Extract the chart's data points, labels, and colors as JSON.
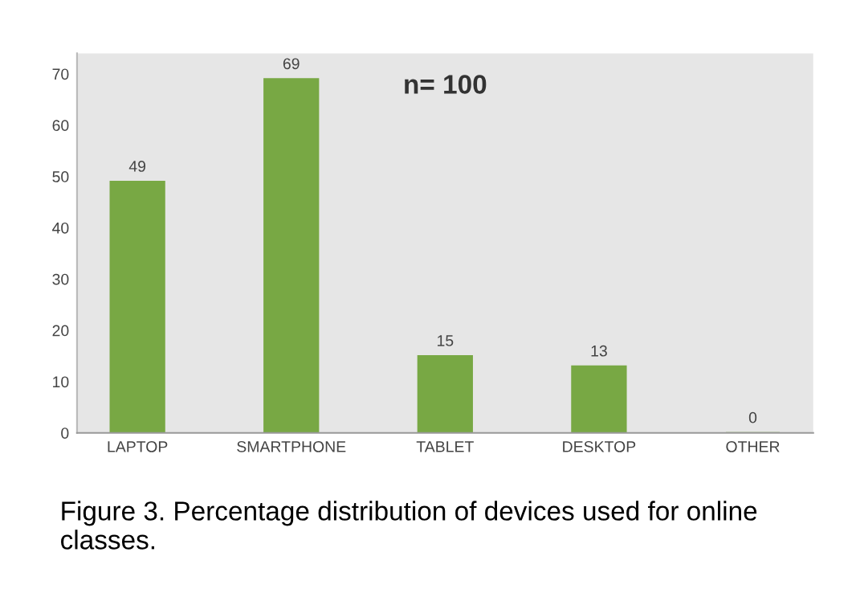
{
  "chart_data": {
    "type": "bar",
    "title": "n= 100",
    "categories": [
      "LAPTOP",
      "SMARTPHONE",
      "TABLET",
      "DESKTOP",
      "OTHER"
    ],
    "values": [
      49,
      69,
      15,
      13,
      0
    ],
    "color": "#78a844",
    "ylim": [
      0,
      74
    ],
    "yticks": [
      0,
      10,
      20,
      30,
      40,
      50,
      60,
      70
    ],
    "grid": false,
    "data_labels": true,
    "annotations": [
      "Figure 3. Percentage distribution of devices used for online classes."
    ]
  }
}
